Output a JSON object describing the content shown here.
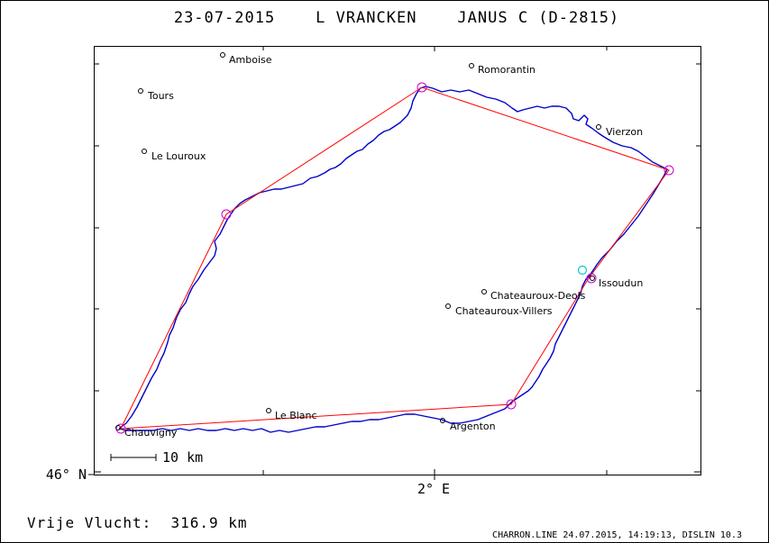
{
  "header": {
    "title": "23-07-2015    L VRANCKEN    JANUS C (D-2815)"
  },
  "axes": {
    "y_label": "46° N",
    "x_label": "2° E"
  },
  "scale_bar": {
    "label": "10 km"
  },
  "towns": [
    {
      "name": "Amboise"
    },
    {
      "name": "Romorantin"
    },
    {
      "name": "Tours"
    },
    {
      "name": "Vierzon"
    },
    {
      "name": "Le Louroux"
    },
    {
      "name": "Issoudun"
    },
    {
      "name": "Chateauroux-Deols"
    },
    {
      "name": "Chateauroux-Villers"
    },
    {
      "name": "Le Blanc"
    },
    {
      "name": "Argenton"
    },
    {
      "name": "Chauvigny"
    }
  ],
  "footer": {
    "distance": "Vrije Vlucht:  316.9 km",
    "meta": "CHARRON.LINE 24.07.2015, 14:19:13, DISLIN 10.3"
  },
  "colors": {
    "track": "#0000cc",
    "task": "#ff0000",
    "turnpoint": "#cc00cc",
    "start": "#00cccc",
    "frame": "#000000"
  }
}
